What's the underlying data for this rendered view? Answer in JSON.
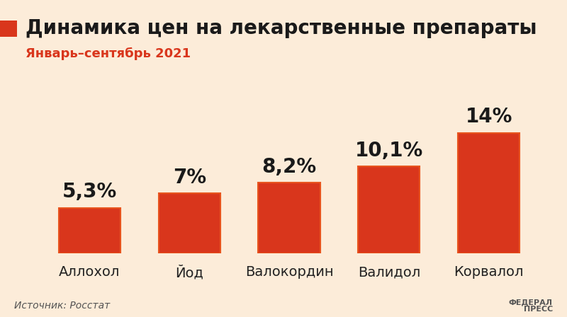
{
  "chart_data": {
    "type": "bar",
    "title": "Динамика цен на лекарственные препараты",
    "subtitle": "Январь–сентябрь 2021",
    "categories": [
      "Аллохол",
      "Йод",
      "Валокордин",
      "Валидол",
      "Корвалол"
    ],
    "values": [
      5.3,
      7,
      8.2,
      10.1,
      14
    ],
    "value_labels": [
      "5,3%",
      "7%",
      "8,2%",
      "10,1%",
      "14%"
    ],
    "data_labels": true,
    "tick_labels": "x",
    "grid": false,
    "color": "#d9361c",
    "source": "Источник: Росстат",
    "logo": [
      "ФЕДЕРАЛ",
      "ПРЕСС"
    ]
  }
}
